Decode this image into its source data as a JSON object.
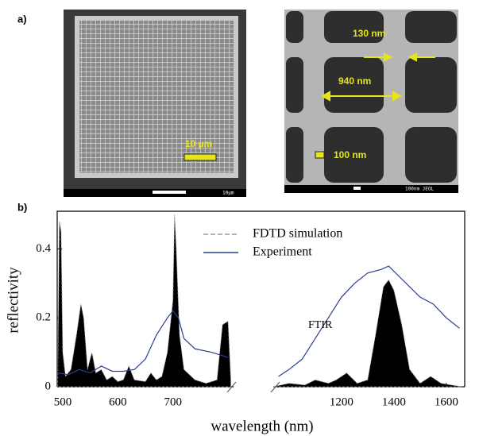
{
  "panel_a": {
    "label": "a)",
    "left_image": {
      "scale_label": "10 µm",
      "footer": "10μm"
    },
    "right_image": {
      "pitch_label": "940 nm",
      "bar_label": "130 nm",
      "hole_label": "100 nm",
      "footer": "100nm JEOL"
    }
  },
  "panel_b_label": "b)",
  "chart_data": {
    "type": "line",
    "x_label": "wavelength (nm)",
    "y_label": "reflectivity",
    "ylim": [
      0,
      0.5
    ],
    "yticks": [
      0,
      0.2,
      0.4
    ],
    "segments": [
      {
        "xlim": [
          490,
          810
        ],
        "xticks": [
          500,
          600,
          700
        ],
        "series": [
          {
            "name": "FDTD simulation",
            "color": "#000000",
            "fill": true,
            "x": [
              491,
              494,
              497,
              500,
              505,
              515,
              525,
              533,
              538,
              545,
              553,
              560,
              570,
              580,
              590,
              600,
              610,
              620,
              630,
              650,
              660,
              670,
              680,
              690,
              700,
              703,
              706,
              712,
              720,
              740,
              760,
              780,
              790,
              800,
              805
            ],
            "values": [
              0.02,
              0.48,
              0.45,
              0.1,
              0.03,
              0.05,
              0.15,
              0.24,
              0.2,
              0.05,
              0.1,
              0.04,
              0.05,
              0.02,
              0.03,
              0.015,
              0.02,
              0.06,
              0.02,
              0.015,
              0.04,
              0.02,
              0.03,
              0.1,
              0.25,
              0.5,
              0.4,
              0.15,
              0.05,
              0.02,
              0.01,
              0.02,
              0.18,
              0.19,
              0.02
            ]
          },
          {
            "name": "Experiment",
            "color": "#2b3f8f",
            "fill": false,
            "x": [
              491,
              510,
              530,
              550,
              570,
              590,
              610,
              630,
              650,
              670,
              690,
              700,
              710,
              720,
              740,
              770,
              800
            ],
            "values": [
              0.04,
              0.035,
              0.05,
              0.04,
              0.06,
              0.045,
              0.045,
              0.05,
              0.08,
              0.15,
              0.2,
              0.22,
              0.2,
              0.14,
              0.11,
              0.1,
              0.085
            ]
          }
        ]
      },
      {
        "xlim": [
          940,
          1670
        ],
        "xticks": [
          1200,
          1400,
          1600
        ],
        "annotation": "FTIR",
        "series": [
          {
            "color": "#000000",
            "fill": true,
            "x": [
              940,
              1000,
              1060,
              1100,
              1150,
              1180,
              1220,
              1260,
              1300,
              1330,
              1360,
              1380,
              1400,
              1430,
              1460,
              1500,
              1540,
              1580,
              1620,
              1660
            ],
            "values": [
              0,
              0.01,
              0.005,
              0.02,
              0.01,
              0.02,
              0.04,
              0.01,
              0.02,
              0.15,
              0.29,
              0.31,
              0.28,
              0.18,
              0.05,
              0.01,
              0.03,
              0.01,
              0.005,
              0
            ]
          },
          {
            "color": "#2b3f8f",
            "fill": false,
            "x": [
              960,
              1000,
              1050,
              1100,
              1150,
              1200,
              1250,
              1300,
              1350,
              1380,
              1420,
              1460,
              1500,
              1550,
              1600,
              1650
            ],
            "values": [
              0.03,
              0.05,
              0.08,
              0.14,
              0.2,
              0.26,
              0.3,
              0.33,
              0.34,
              0.35,
              0.32,
              0.29,
              0.26,
              0.24,
              0.2,
              0.17
            ]
          }
        ]
      }
    ]
  }
}
